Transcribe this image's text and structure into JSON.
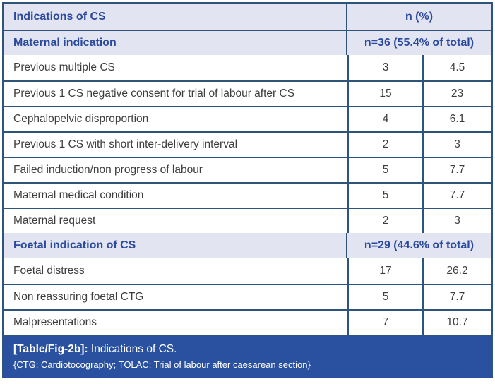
{
  "header": {
    "col1": "Indications of CS",
    "col2": "n (%)"
  },
  "sections": [
    {
      "id": "maternal",
      "label": "Maternal indication",
      "summary": "n=36 (55.4% of total)",
      "rows": [
        {
          "label": "Previous multiple CS",
          "n": "3",
          "pct": "4.5"
        },
        {
          "label": "Previous 1 CS negative consent for trial of labour after CS",
          "n": "15",
          "pct": "23"
        },
        {
          "label": "Cephalopelvic disproportion",
          "n": "4",
          "pct": "6.1"
        },
        {
          "label": "Previous 1 CS with short inter-delivery interval",
          "n": "2",
          "pct": "3"
        },
        {
          "label": "Failed induction/non progress of labour",
          "n": "5",
          "pct": "7.7"
        },
        {
          "label": "Maternal medical condition",
          "n": "5",
          "pct": "7.7"
        },
        {
          "label": "Maternal request",
          "n": "2",
          "pct": "3"
        }
      ]
    },
    {
      "id": "foetal",
      "label": "Foetal indication of CS",
      "summary": "n=29 (44.6% of total)",
      "rows": [
        {
          "label": "Foetal distress",
          "n": "17",
          "pct": "26.2"
        },
        {
          "label": "Non reassuring foetal CTG",
          "n": "5",
          "pct": "7.7"
        },
        {
          "label": "Malpresentations",
          "n": "7",
          "pct": "10.7"
        }
      ]
    }
  ],
  "caption": {
    "tag": "[Table/Fig-2b]:",
    "title": " Indications of CS.",
    "note": "{CTG: Cardiotocography; TOLAC: Trial of labour after caesarean section}"
  },
  "colors": {
    "band_bg": "#e2e5f1",
    "band_text": "#2b4a9d",
    "grid": "#2f547c",
    "footer_bg": "#2a51a0",
    "row_text": "#3d3d3d"
  }
}
